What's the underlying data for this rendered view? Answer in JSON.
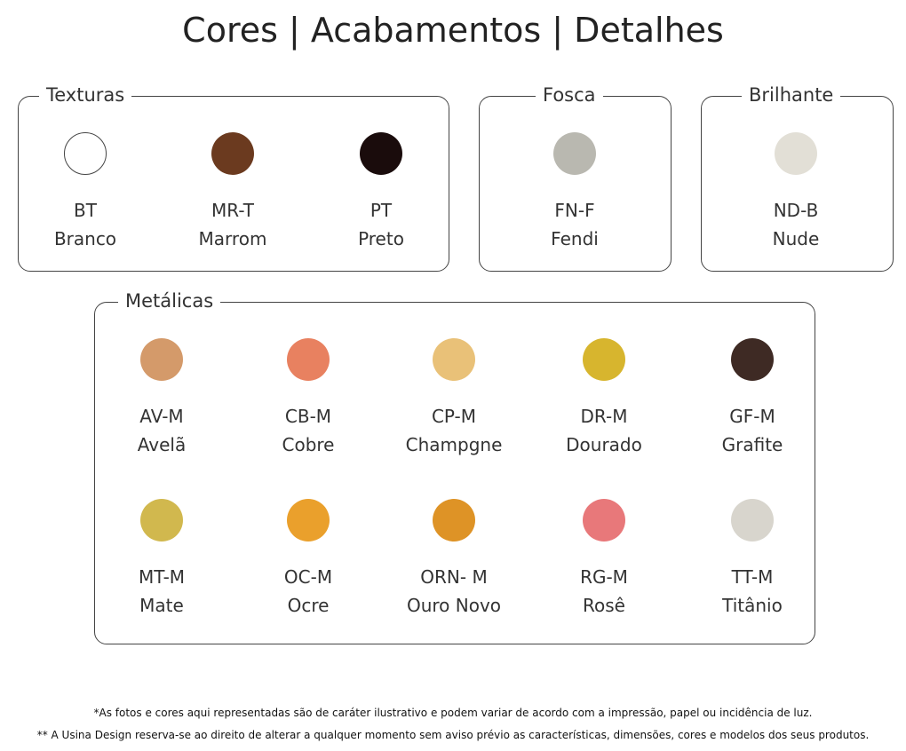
{
  "title": "Cores | Acabamentos | Detalhes",
  "groups": [
    {
      "name": "Texturas",
      "items": [
        {
          "code": "BT",
          "name": "Branco",
          "color": "#ffffff"
        },
        {
          "code": "MR-T",
          "name": "Marrom",
          "color": "#6b3a1f"
        },
        {
          "code": "PT",
          "name": "Preto",
          "color": "#1a0c0c"
        }
      ]
    },
    {
      "name": "Fosca",
      "items": [
        {
          "code": "FN-F",
          "name": "Fendi",
          "color": "#b9b8b0"
        }
      ]
    },
    {
      "name": "Brilhante",
      "items": [
        {
          "code": "ND-B",
          "name": "Nude",
          "color": "#e2dfd6"
        }
      ]
    },
    {
      "name": "Metálicas",
      "items": [
        {
          "code": "AV-M",
          "name": "Avelã",
          "color": "#d49a6a"
        },
        {
          "code": "CB-M",
          "name": "Cobre",
          "color": "#e88160"
        },
        {
          "code": "CP-M",
          "name": "Champgne",
          "color": "#e9c178"
        },
        {
          "code": "DR-M",
          "name": "Dourado",
          "color": "#d7b52e"
        },
        {
          "code": "GF-M",
          "name": "Grafite",
          "color": "#3e2a24"
        },
        {
          "code": "MT-M",
          "name": "Mate",
          "color": "#d1b84e"
        },
        {
          "code": "OC-M",
          "name": "Ocre",
          "color": "#eaa02c"
        },
        {
          "code": "ORN- M",
          "name": "Ouro Novo",
          "color": "#de9326"
        },
        {
          "code": "RG-M",
          "name": "Rosê",
          "color": "#e8787a"
        },
        {
          "code": "TT-M",
          "name": "Titânio",
          "color": "#d8d5cd"
        }
      ]
    }
  ],
  "footnotes": [
    "*As fotos e cores aqui representadas são de caráter ilustrativo e podem variar de acordo com a impressão, papel ou incidência de luz.",
    "** A Usina Design reserva-se ao direito de alterar a qualquer momento sem  aviso prévio  as características, dimensões, cores e modelos dos seus produtos."
  ]
}
